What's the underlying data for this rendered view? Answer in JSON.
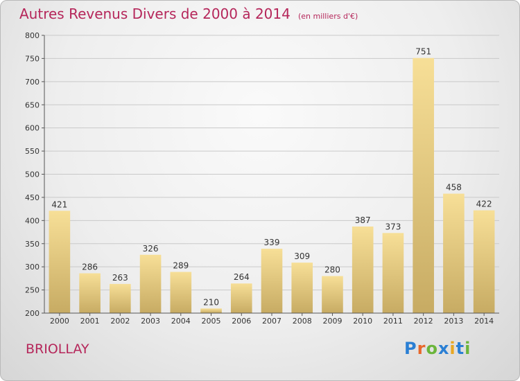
{
  "title": "Autres Revenus Divers de 2000 à 2014",
  "subtitle": "(en milliers d'€)",
  "place": "BRIOLLAY",
  "logo": {
    "letters": [
      {
        "char": "P",
        "color": "#2a7fd4"
      },
      {
        "char": "r",
        "color": "#e8672a"
      },
      {
        "char": "o",
        "color": "#6bb53b"
      },
      {
        "char": "x",
        "color": "#2a7fd4"
      },
      {
        "char": "i",
        "color": "#e8a723"
      },
      {
        "char": "t",
        "color": "#2a7fd4"
      },
      {
        "char": "i",
        "color": "#6bb53b"
      }
    ]
  },
  "colors": {
    "bar_light": "#f7df97",
    "bar_dark": "#c7ab63",
    "text_accent": "#b5265a"
  },
  "chart_data": {
    "type": "bar",
    "title": "Autres Revenus Divers de 2000 à 2014",
    "categories": [
      "2000",
      "2001",
      "2002",
      "2003",
      "2004",
      "2005",
      "2006",
      "2007",
      "2008",
      "2009",
      "2010",
      "2011",
      "2012",
      "2013",
      "2014"
    ],
    "values": [
      421,
      286,
      263,
      326,
      289,
      210,
      264,
      339,
      309,
      280,
      387,
      373,
      751,
      458,
      422
    ],
    "ylim": [
      200,
      800
    ],
    "yticks": [
      200,
      250,
      300,
      350,
      400,
      450,
      500,
      550,
      600,
      650,
      700,
      750,
      800
    ],
    "grid": true,
    "legend": "none"
  }
}
